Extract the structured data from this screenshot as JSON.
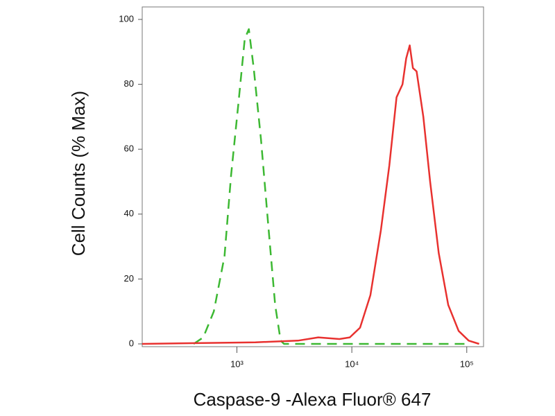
{
  "chart_data": {
    "type": "line",
    "xlabel": "Caspase-9 -Alexa Fluor® 647",
    "ylabel": "Cell Counts (% Max)",
    "xscale": "log",
    "xlim": [
      150,
      140000
    ],
    "ylim": [
      0,
      100
    ],
    "xticks": [
      {
        "value": 1000,
        "label": "10³"
      },
      {
        "value": 10000,
        "label": "10⁴"
      },
      {
        "value": 100000,
        "label": "10⁵"
      }
    ],
    "yticks": [
      0,
      20,
      40,
      60,
      80,
      100
    ],
    "series": [
      {
        "color": "#3cb832",
        "dash": true,
        "x": [
          420,
          510,
          630,
          780,
          890,
          1030,
          1170,
          1270,
          1400,
          1620,
          1870,
          2150,
          2400,
          2570,
          5000,
          20000,
          100000
        ],
        "values": [
          0,
          2,
          10,
          27,
          52,
          74,
          94,
          97,
          85,
          63,
          37,
          12,
          1,
          0,
          0,
          0,
          0
        ]
      },
      {
        "color": "#e8312f",
        "dash": false,
        "x": [
          150,
          1450,
          3400,
          5100,
          7800,
          9600,
          11800,
          14500,
          17900,
          21200,
          24500,
          27600,
          29700,
          31900,
          34000,
          36600,
          41900,
          48000,
          57000,
          69000,
          85000,
          104000,
          128000
        ],
        "values": [
          0,
          0.5,
          1,
          2,
          1.5,
          2,
          5,
          15,
          35,
          55,
          76,
          80,
          88,
          92,
          85,
          84,
          70,
          50,
          28,
          12,
          4,
          1,
          0
        ]
      }
    ]
  }
}
